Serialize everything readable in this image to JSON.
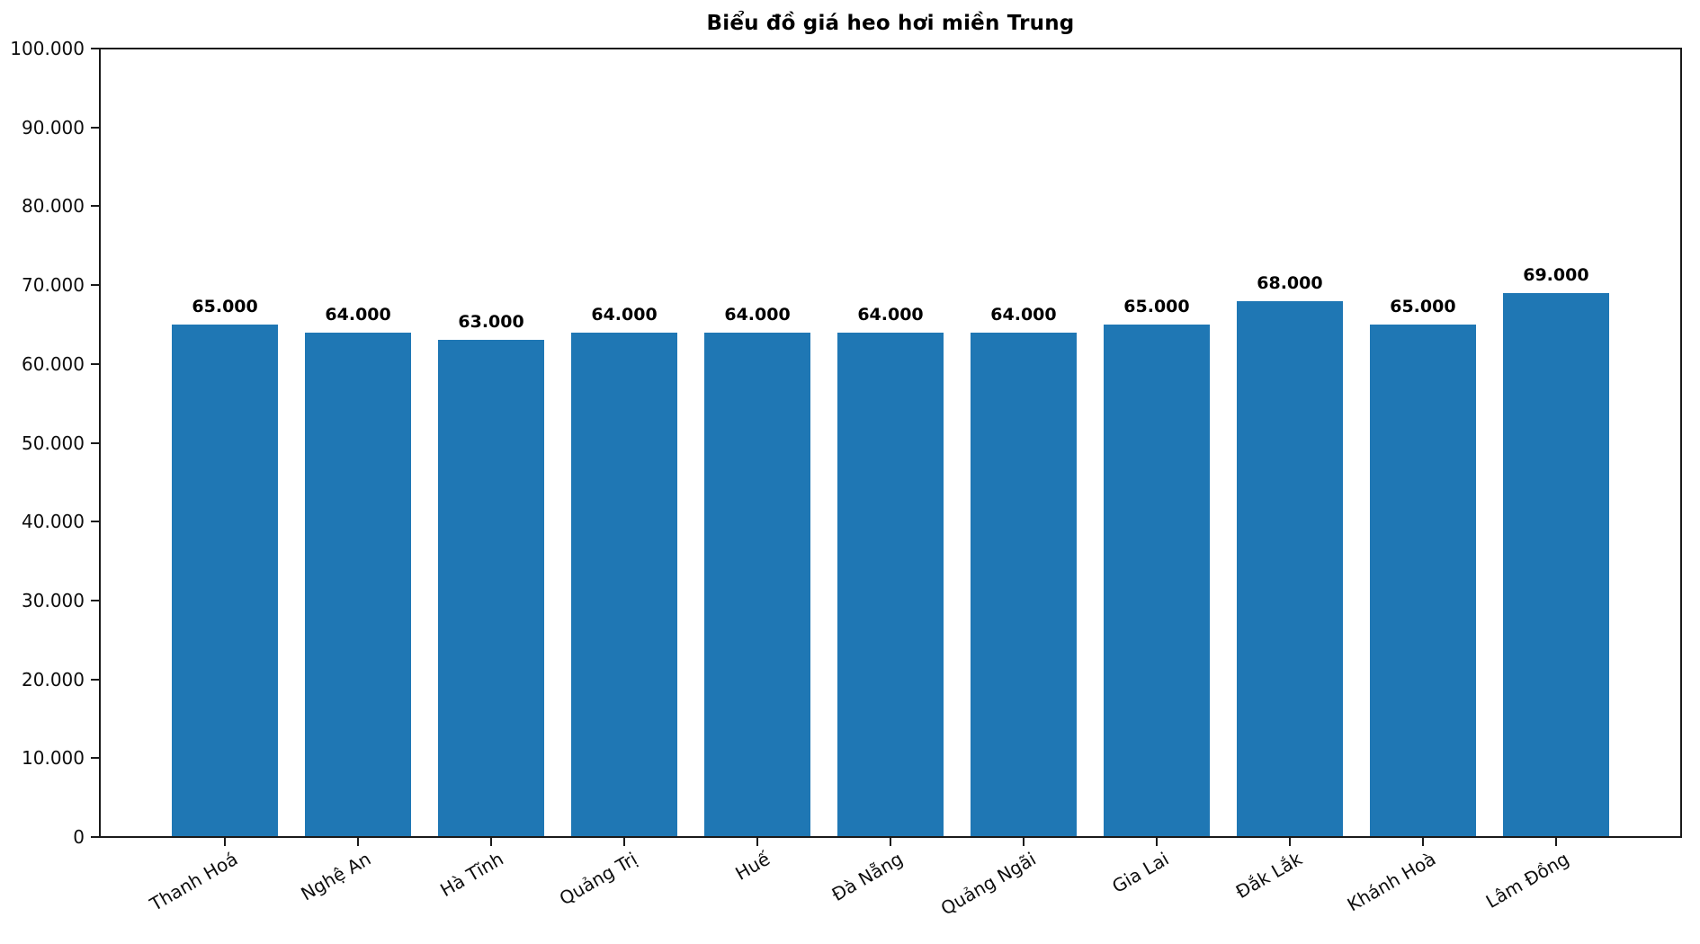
{
  "chart_data": {
    "type": "bar",
    "title": "Biểu đồ giá heo hơi miền Trung",
    "categories": [
      "Thanh Hoá",
      "Nghệ An",
      "Hà Tĩnh",
      "Quảng Trị",
      "Huế",
      "Đà Nẵng",
      "Quảng Ngãi",
      "Gia Lai",
      "Đắk Lắk",
      "Khánh Hoà",
      "Lâm Đồng"
    ],
    "values": [
      65000,
      64000,
      63000,
      64000,
      64000,
      64000,
      64000,
      65000,
      68000,
      65000,
      69000
    ],
    "bar_labels": [
      "65.000",
      "64.000",
      "63.000",
      "64.000",
      "64.000",
      "64.000",
      "64.000",
      "65.000",
      "68.000",
      "65.000",
      "69.000"
    ],
    "xlabel": "",
    "ylabel": "",
    "ylim": [
      0,
      100000
    ],
    "yticks": {
      "values": [
        0,
        10000,
        20000,
        30000,
        40000,
        50000,
        60000,
        70000,
        80000,
        90000,
        100000
      ],
      "labels": [
        "0",
        "10.000",
        "20.000",
        "30.000",
        "40.000",
        "50.000",
        "60.000",
        "70.000",
        "80.000",
        "90.000",
        "100.000"
      ]
    },
    "x_tick_rotation_deg": 30,
    "grid": false,
    "legend": null,
    "bar_color": "#1f77b4",
    "axis_color": "#1a1a1a",
    "text_color": "#000000"
  }
}
